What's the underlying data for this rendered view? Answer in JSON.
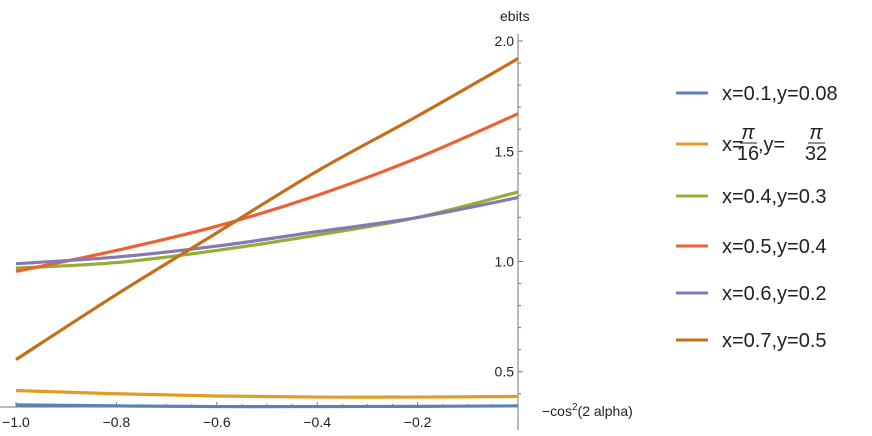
{
  "chart_data": {
    "type": "line",
    "title": "",
    "xlabel": "-cos^2(2 alpha)",
    "ylabel": "ebits",
    "xlim": [
      -1.0,
      0.0
    ],
    "ylim": [
      0.34,
      2.05
    ],
    "x_ticks": [
      -1.0,
      -0.8,
      -0.6,
      -0.4,
      -0.2
    ],
    "x_tick_labels": [
      "−1.0",
      "−0.8",
      "−0.6",
      "−0.4",
      "−0.2"
    ],
    "y_ticks": [
      0.5,
      1.0,
      1.5,
      2.0
    ],
    "y_tick_labels": [
      "0.5",
      "1.0",
      "1.5",
      "2.0"
    ],
    "grid": false,
    "legend_position": "right",
    "series": [
      {
        "name": "x=0.1,y=0.08",
        "color": "#5E81B5",
        "x": [
          -1.0,
          -0.8,
          -0.6,
          -0.4,
          -0.2,
          0.0
        ],
        "y": [
          0.35,
          0.345,
          0.342,
          0.342,
          0.343,
          0.345
        ]
      },
      {
        "name": "x=π/16,y=π/32",
        "color": "#E19C24",
        "x": [
          -1.0,
          -0.8,
          -0.6,
          -0.4,
          -0.2,
          0.0
        ],
        "y": [
          0.415,
          0.4,
          0.39,
          0.385,
          0.385,
          0.388
        ]
      },
      {
        "name": "x=0.4,y=0.3",
        "color": "#8FB032",
        "x": [
          -1.0,
          -0.8,
          -0.6,
          -0.4,
          -0.2,
          0.0
        ],
        "y": [
          0.97,
          0.995,
          1.05,
          1.12,
          1.2,
          1.315
        ]
      },
      {
        "name": "x=0.5,y=0.4",
        "color": "#EB6235",
        "x": [
          -1.0,
          -0.8,
          -0.6,
          -0.4,
          -0.2,
          0.0
        ],
        "y": [
          0.955,
          1.05,
          1.16,
          1.3,
          1.47,
          1.67
        ]
      },
      {
        "name": "x=0.6,y=0.2",
        "color": "#8778B3",
        "x": [
          -1.0,
          -0.8,
          -0.6,
          -0.4,
          -0.2,
          0.0
        ],
        "y": [
          0.99,
          1.02,
          1.07,
          1.135,
          1.2,
          1.29
        ]
      },
      {
        "name": "x=0.7,y=0.5",
        "color": "#C56E1A",
        "x": [
          -1.0,
          -0.8,
          -0.6,
          -0.4,
          -0.2,
          0.0
        ],
        "y": [
          0.555,
          0.85,
          1.13,
          1.41,
          1.66,
          1.92
        ]
      }
    ]
  },
  "legend": {
    "items": [
      {
        "label": "x=0.1,y=0.08"
      },
      {
        "prefix": "x=",
        "num1": "π",
        "den1": "16",
        "mid": ",y=",
        "num2": "π",
        "den2": "32"
      },
      {
        "label": "x=0.4,y=0.3"
      },
      {
        "label": "x=0.5,y=0.4"
      },
      {
        "label": "x=0.6,y=0.2"
      },
      {
        "label": "x=0.7,y=0.5"
      }
    ]
  },
  "axis_text": {
    "y_title": "ebits",
    "x_title_prefix": "−cos",
    "x_title_sup": "2",
    "x_title_suffix": "(2 alpha)"
  }
}
